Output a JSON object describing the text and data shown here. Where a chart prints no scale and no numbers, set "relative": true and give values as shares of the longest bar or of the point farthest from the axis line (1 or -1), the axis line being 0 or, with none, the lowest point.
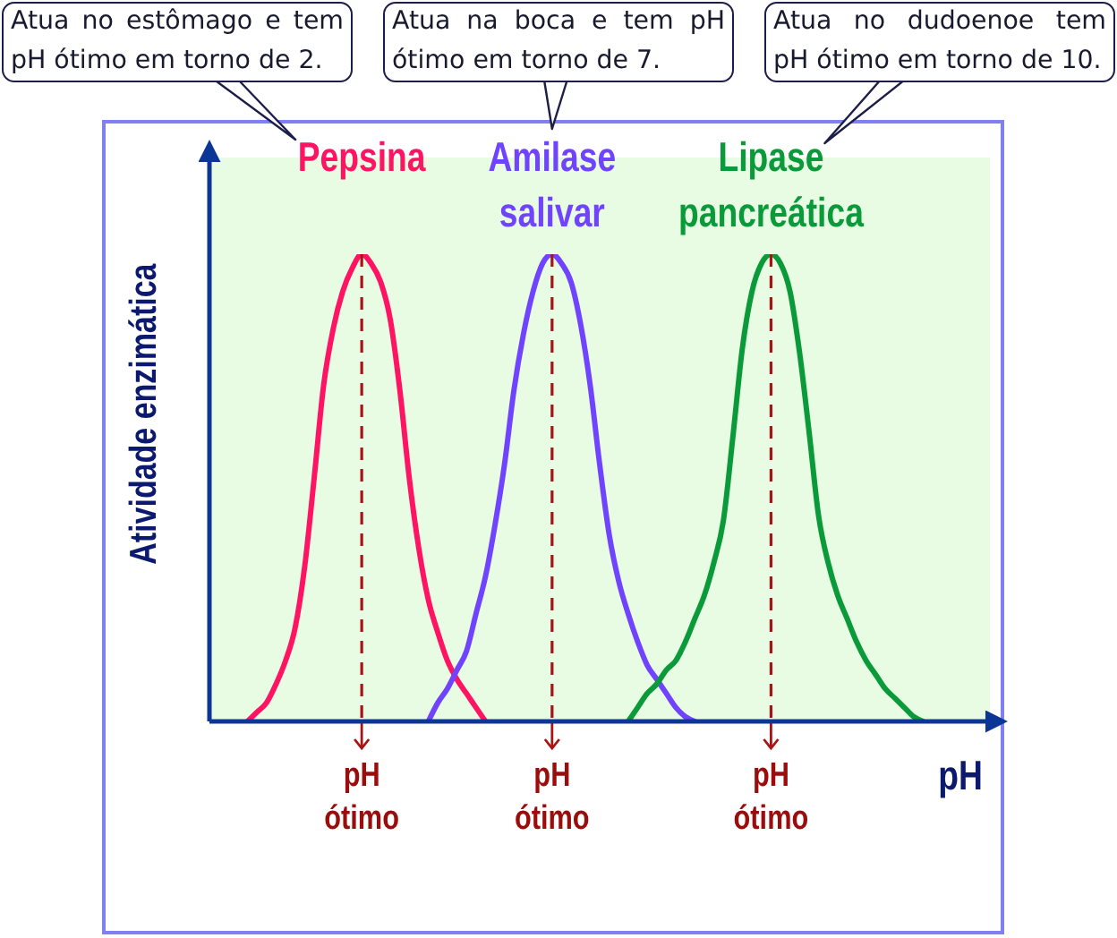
{
  "chart_data": {
    "type": "line",
    "relative": true,
    "xlabel": "pH",
    "ylabel": "Atividade enzimática",
    "grid": "x",
    "categories": [
      null,
      null,
      null,
      null,
      null,
      null,
      null,
      null,
      null,
      null,
      null,
      null,
      null,
      null,
      null,
      null,
      "pH ótimo",
      null,
      null,
      null,
      null,
      null,
      null,
      null,
      null,
      null,
      null,
      null,
      null,
      null,
      null,
      null,
      null,
      null,
      null,
      null,
      "pH ótimo",
      null,
      null,
      null,
      null,
      null,
      null,
      null,
      null,
      null,
      null,
      null,
      null,
      null,
      null,
      null,
      null,
      null,
      null,
      null,
      null,
      null,
      null,
      "pH ótimo",
      null,
      null,
      null,
      null,
      null,
      null,
      null,
      null,
      null,
      null,
      null,
      null,
      null,
      null,
      null,
      null,
      null,
      null,
      null,
      null,
      null,
      null,
      null
    ],
    "series": [
      {
        "name": "Pepsina",
        "color": "#ff1464",
        "values": [
          null,
          null,
          null,
          null,
          0,
          0.02,
          0.04,
          0.08,
          0.13,
          0.2,
          0.33,
          0.52,
          0.72,
          0.84,
          0.92,
          0.97,
          1,
          0.98,
          0.94,
          0.86,
          0.71,
          0.52,
          0.37,
          0.26,
          0.19,
          0.13,
          0.09,
          0.06,
          0.03,
          0,
          null,
          null,
          null,
          null,
          null,
          null,
          null,
          null,
          null,
          null,
          null,
          null,
          null,
          null,
          null,
          null,
          null,
          null,
          null,
          null,
          null,
          null,
          null,
          null,
          null,
          null,
          null,
          null,
          null,
          null,
          null,
          null,
          null,
          null,
          null,
          null,
          null,
          null,
          null,
          null,
          null,
          null,
          null,
          null,
          null,
          null,
          null,
          null,
          null,
          null,
          null,
          null,
          null
        ]
      },
      {
        "name": "Amilase salivar",
        "color": "#7044ff",
        "values": [
          null,
          null,
          null,
          null,
          null,
          null,
          null,
          null,
          null,
          null,
          null,
          null,
          null,
          null,
          null,
          null,
          null,
          null,
          null,
          null,
          null,
          null,
          null,
          0,
          0.04,
          0.07,
          0.11,
          0.15,
          0.23,
          0.31,
          0.42,
          0.55,
          0.71,
          0.83,
          0.92,
          0.98,
          1,
          0.98,
          0.94,
          0.85,
          0.72,
          0.55,
          0.4,
          0.3,
          0.23,
          0.17,
          0.12,
          0.09,
          0.06,
          0.03,
          0.01,
          0,
          null,
          null,
          null,
          null,
          null,
          null,
          null,
          null,
          null,
          null,
          null,
          null,
          null,
          null,
          null,
          null,
          null,
          null,
          null,
          null,
          null,
          null,
          null,
          null,
          null,
          null,
          null,
          null,
          null,
          null,
          null
        ]
      },
      {
        "name": "Lipase pancreática",
        "color": "#0a9a3a",
        "values": [
          null,
          null,
          null,
          null,
          null,
          null,
          null,
          null,
          null,
          null,
          null,
          null,
          null,
          null,
          null,
          null,
          null,
          null,
          null,
          null,
          null,
          null,
          null,
          null,
          null,
          null,
          null,
          null,
          null,
          null,
          null,
          null,
          null,
          null,
          null,
          null,
          null,
          null,
          null,
          null,
          null,
          null,
          null,
          null,
          0,
          0.03,
          0.06,
          0.08,
          0.11,
          0.13,
          0.17,
          0.22,
          0.27,
          0.34,
          0.43,
          0.61,
          0.8,
          0.92,
          0.98,
          1,
          0.98,
          0.92,
          0.79,
          0.62,
          0.44,
          0.34,
          0.27,
          0.22,
          0.17,
          0.13,
          0.1,
          0.07,
          0.05,
          0.03,
          0.01,
          0,
          null,
          null,
          null,
          null,
          null,
          null,
          null
        ]
      }
    ],
    "annotations": [
      "Atua no estômago e tem pH ótimo em torno de 2.",
      "Atua na boca e tem pH ótimo em torno de 7.",
      "Atua no dudoenoe tem pH ótimo em torno de 10."
    ]
  }
}
